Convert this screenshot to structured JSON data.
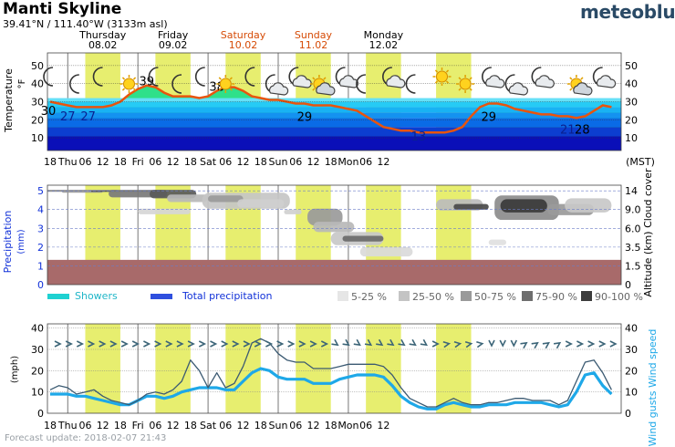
{
  "header": {
    "title": "Manti Skyline",
    "coords_lat": "39.41",
    "coords_lon": "N / 111.40",
    "coords_lon_deg": "W (3133m asl)",
    "logo": "meteoblue"
  },
  "footer": {
    "update": "Forecast update: 2018-02-07 21:43"
  },
  "days": [
    {
      "name": "Thursday",
      "date": "08.02",
      "weekend": false
    },
    {
      "name": "Friday",
      "date": "09.02",
      "weekend": false
    },
    {
      "name": "Saturday",
      "date": "10.02",
      "weekend": true
    },
    {
      "name": "Sunday",
      "date": "11.02",
      "weekend": true
    },
    {
      "name": "Monday",
      "date": "12.02",
      "weekend": false
    }
  ],
  "colors": {
    "weekend": "#d64b06",
    "daylight": "#e7ee6f",
    "temp_line": "#e9540d",
    "warm_fill": "#2fe08a",
    "wind_speed": "#1ea8e8",
    "wind_gust": "#3b5a72",
    "rain_band": "#a86a6a",
    "arrow": "#3c6578",
    "showers": "#1fd1d1",
    "total_precip": "#2f4fde"
  },
  "time_labels": [
    "18",
    "Thu",
    "06",
    "12",
    "18",
    "Fri",
    "06",
    "12",
    "18",
    "Sat",
    "06",
    "12",
    "18",
    "Sun",
    "06",
    "12",
    "18",
    "Mon",
    "06",
    "12"
  ],
  "time_unit": "(MST)",
  "temp_panel": {
    "ylabel": "Temperature",
    "unit": "°F",
    "y_ticks": [
      "50",
      "40",
      "30",
      "20",
      "10"
    ],
    "labels": [
      {
        "h": 0,
        "v": "30",
        "color": "#000"
      },
      {
        "h": 6,
        "v": "27",
        "color": "#0a2090"
      },
      {
        "h": 13,
        "v": "27",
        "color": "#0a2090"
      },
      {
        "h": 33,
        "v": "39",
        "color": "#000"
      },
      {
        "h": 57,
        "v": "38",
        "color": "#000"
      },
      {
        "h": 87,
        "v": "29",
        "color": "#000"
      },
      {
        "h": 126,
        "v": "13",
        "color": "#0a2090"
      },
      {
        "h": 150,
        "v": "29",
        "color": "#000"
      },
      {
        "h": 177,
        "v": "21",
        "color": "#0a2090"
      },
      {
        "h": 182,
        "v": "28",
        "color": "#000"
      }
    ],
    "icons": [
      {
        "h": 0,
        "type": "moon"
      },
      {
        "h": 9,
        "type": "moon"
      },
      {
        "h": 17,
        "type": "moon"
      },
      {
        "h": 27,
        "type": "sun"
      },
      {
        "h": 36,
        "type": "moon"
      },
      {
        "h": 44,
        "type": "moon"
      },
      {
        "h": 52,
        "type": "moon"
      },
      {
        "h": 60,
        "type": "sun"
      },
      {
        "h": 69,
        "type": "moon"
      },
      {
        "h": 76,
        "type": "moon-cloud"
      },
      {
        "h": 84,
        "type": "moon-cloud"
      },
      {
        "h": 92,
        "type": "sun-cloud"
      },
      {
        "h": 100,
        "type": "moon-cloud"
      },
      {
        "h": 107,
        "type": "moon"
      },
      {
        "h": 116,
        "type": "moon-cloud"
      },
      {
        "h": 124,
        "type": "moon"
      },
      {
        "h": 134,
        "type": "sun"
      },
      {
        "h": 142,
        "type": "sun"
      },
      {
        "h": 150,
        "type": "moon-cloud"
      },
      {
        "h": 158,
        "type": "moon-cloud"
      },
      {
        "h": 167,
        "type": "moon-cloud"
      },
      {
        "h": 180,
        "type": "sun-cloud"
      },
      {
        "h": 188,
        "type": "moon-cloud"
      }
    ]
  },
  "precip_panel": {
    "ylabel": "Precipitation",
    "unit": "(mm)",
    "y_left_ticks": [
      "5",
      "4",
      "3",
      "2",
      "1",
      "0"
    ],
    "y_right_ticks": [
      "14",
      "9.0",
      "6.0",
      "3.5",
      "1.5",
      "0"
    ],
    "ylabel_right": "Altitude (km) Cloud cover",
    "legend": {
      "showers": "Showers",
      "total": "Total precipitation",
      "cloud_bins": [
        "5-25 %",
        "25-50 %",
        "50-75 %",
        "75-90 %",
        "90-100 %"
      ]
    }
  },
  "wind_panel": {
    "ylabel": "(mph)",
    "y_ticks": [
      "40",
      "30",
      "20",
      "10",
      "0"
    ],
    "ylabel_right": "Wind gusts Wind speed"
  },
  "chart_data": [
    {
      "type": "area",
      "title": "Temperature",
      "ylabel": "°F",
      "ylim": [
        3,
        57
      ],
      "x_unit": "hours from Wed 18:00 MST",
      "x": [
        0,
        3,
        6,
        9,
        12,
        15,
        18,
        21,
        24,
        27,
        30,
        33,
        36,
        39,
        42,
        45,
        48,
        51,
        54,
        57,
        60,
        63,
        66,
        69,
        72,
        75,
        78,
        81,
        84,
        87,
        90,
        93,
        96,
        99,
        102,
        105,
        108,
        111,
        114,
        117,
        120,
        123,
        126,
        129,
        132,
        135,
        138,
        141,
        144,
        147,
        150,
        153,
        156,
        159,
        162,
        165,
        168,
        171,
        174,
        177,
        180,
        183,
        186,
        189,
        192
      ],
      "values": [
        30,
        29,
        28,
        27,
        27,
        27,
        27,
        28,
        30,
        34,
        37,
        39,
        38,
        35,
        33,
        33,
        33,
        32,
        33,
        36,
        38,
        38,
        36,
        33,
        32,
        31,
        31,
        30,
        29,
        29,
        28,
        28,
        28,
        27,
        26,
        25,
        22,
        19,
        16,
        15,
        14,
        14,
        13,
        13,
        13,
        13,
        14,
        16,
        22,
        27,
        29,
        29,
        28,
        26,
        25,
        24,
        23,
        23,
        22,
        22,
        21,
        22,
        25,
        28,
        27
      ]
    },
    {
      "type": "heatmap",
      "title": "Cloud cover",
      "ylabel": "Altitude (km)",
      "x_unit": "hours from Wed 18:00 MST"
    },
    {
      "type": "line",
      "title": "Wind",
      "ylabel": "mph",
      "ylim": [
        0,
        40
      ],
      "x_unit": "hours from Wed 18:00 MST",
      "series": [
        {
          "name": "Wind speed",
          "x": [
            0,
            3,
            6,
            9,
            12,
            15,
            18,
            21,
            24,
            27,
            30,
            33,
            36,
            39,
            42,
            45,
            48,
            51,
            54,
            57,
            60,
            63,
            66,
            69,
            72,
            75,
            78,
            81,
            84,
            87,
            90,
            93,
            96,
            99,
            102,
            105,
            108,
            111,
            114,
            117,
            120,
            123,
            126,
            129,
            132,
            135,
            138,
            141,
            144,
            147,
            150,
            153,
            156,
            159,
            162,
            165,
            168,
            171,
            174,
            177,
            180,
            183,
            186,
            189,
            192
          ],
          "values": [
            9,
            9,
            9,
            8,
            8,
            7,
            6,
            5,
            4,
            4,
            6,
            8,
            8,
            7,
            8,
            10,
            11,
            12,
            12,
            12,
            11,
            11,
            15,
            19,
            21,
            20,
            17,
            16,
            16,
            16,
            14,
            14,
            14,
            16,
            17,
            18,
            18,
            18,
            17,
            13,
            8,
            5,
            3,
            2,
            2,
            4,
            5,
            4,
            3,
            3,
            4,
            4,
            4,
            5,
            5,
            5,
            5,
            4,
            3,
            4,
            10,
            18,
            19,
            13,
            9
          ]
        },
        {
          "name": "Wind gusts",
          "x": [
            0,
            3,
            6,
            9,
            12,
            15,
            18,
            21,
            24,
            27,
            30,
            33,
            36,
            39,
            42,
            45,
            48,
            51,
            54,
            57,
            60,
            63,
            66,
            69,
            72,
            75,
            78,
            81,
            84,
            87,
            90,
            93,
            96,
            99,
            102,
            105,
            108,
            111,
            114,
            117,
            120,
            123,
            126,
            129,
            132,
            135,
            138,
            141,
            144,
            147,
            150,
            153,
            156,
            159,
            162,
            165,
            168,
            171,
            174,
            177,
            180,
            183,
            186,
            189,
            192
          ],
          "values": [
            11,
            13,
            12,
            9,
            10,
            11,
            8,
            6,
            5,
            4,
            6,
            9,
            10,
            9,
            11,
            15,
            25,
            20,
            12,
            19,
            12,
            14,
            22,
            33,
            35,
            33,
            28,
            25,
            24,
            24,
            21,
            21,
            21,
            22,
            23,
            23,
            23,
            23,
            22,
            18,
            12,
            7,
            5,
            3,
            3,
            5,
            7,
            5,
            4,
            4,
            5,
            5,
            6,
            7,
            7,
            6,
            6,
            6,
            4,
            6,
            15,
            24,
            25,
            19,
            11
          ]
        }
      ]
    }
  ]
}
